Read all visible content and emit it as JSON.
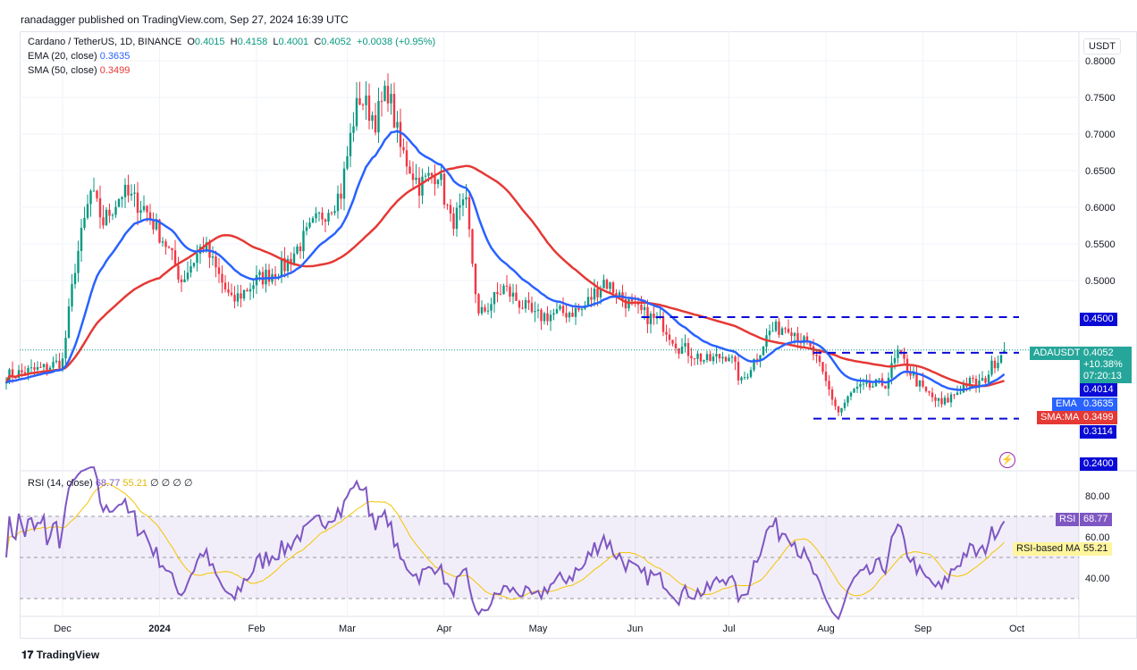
{
  "header": {
    "published": "ranadagger published on TradingView.com, Sep 27, 2024 16:39 UTC"
  },
  "legend": {
    "symbol": "Cardano / TetherUS, 1D, BINANCE",
    "o_label": "O",
    "o": "0.4015",
    "h_label": "H",
    "h": "0.4158",
    "l_label": "L",
    "l": "0.4001",
    "c_label": "C",
    "c": "0.4052",
    "change": "+0.0038 (+0.95%)",
    "ema_label": "EMA (20, close)",
    "ema": "0.3635",
    "sma_label": "SMA (50, close)",
    "sma": "0.3499",
    "rsi_label": "RSI (14, close)",
    "rsi": "68.77",
    "rsi_ma": "55.21",
    "rsi_extra": "∅ ∅ ∅ ∅"
  },
  "axis": {
    "currency": "USDT",
    "price_ticks": [
      "0.8000",
      "0.7500",
      "0.7000",
      "0.6500",
      "0.6000",
      "0.5500",
      "0.5000"
    ],
    "rsi_ticks": [
      "80.00",
      "60.00",
      "40.00"
    ],
    "time_ticks": [
      "Dec",
      "2024",
      "Feb",
      "Mar",
      "Apr",
      "May",
      "Jun",
      "Jul",
      "Aug",
      "Sep",
      "Oct"
    ]
  },
  "badges": {
    "symbol": "ADAUSDT",
    "last": "0.4052",
    "pct": "+10.38%",
    "countdown": "07:20:13",
    "level_450": "0.4500",
    "level_4014": "0.4014",
    "ema_tag": "EMA",
    "ema": "0.3635",
    "sma_tag": "SMA:MA",
    "sma": "0.3499",
    "level_3114": "0.3114",
    "level_240": "0.2400",
    "rsi_tag": "RSI",
    "rsi": "68.77",
    "rsima_tag": "RSI-based MA",
    "rsima": "55.21"
  },
  "footer": {
    "brand": "TradingView"
  },
  "colors": {
    "up": "#089981",
    "down": "#f23645",
    "ema": "#2962ff",
    "sma": "#e53935",
    "rsi": "#7e57c2",
    "rsi_ma": "#f5c400",
    "level": "#0a0ad6"
  },
  "chart_data": {
    "type": "candlestick",
    "title": "Cardano / TetherUS, 1D, BINANCE",
    "ylim": [
      0.24,
      0.8
    ],
    "approx_close_path": [
      [
        "2023-11-13",
        0.37
      ],
      [
        "2023-11-25",
        0.38
      ],
      [
        "2023-12-01",
        0.39
      ],
      [
        "2023-12-05",
        0.52
      ],
      [
        "2023-12-10",
        0.62
      ],
      [
        "2023-12-14",
        0.58
      ],
      [
        "2023-12-20",
        0.62
      ],
      [
        "2023-12-27",
        0.6
      ],
      [
        "2024-01-03",
        0.55
      ],
      [
        "2024-01-08",
        0.5
      ],
      [
        "2024-01-15",
        0.55
      ],
      [
        "2024-01-24",
        0.47
      ],
      [
        "2024-02-01",
        0.5
      ],
      [
        "2024-02-10",
        0.52
      ],
      [
        "2024-02-20",
        0.58
      ],
      [
        "2024-02-28",
        0.62
      ],
      [
        "2024-03-03",
        0.72
      ],
      [
        "2024-03-05",
        0.75
      ],
      [
        "2024-03-10",
        0.72
      ],
      [
        "2024-03-14",
        0.76
      ],
      [
        "2024-03-18",
        0.68
      ],
      [
        "2024-03-24",
        0.63
      ],
      [
        "2024-03-30",
        0.65
      ],
      [
        "2024-04-03",
        0.58
      ],
      [
        "2024-04-08",
        0.6
      ],
      [
        "2024-04-12",
        0.45
      ],
      [
        "2024-04-20",
        0.49
      ],
      [
        "2024-04-30",
        0.45
      ],
      [
        "2024-05-15",
        0.46
      ],
      [
        "2024-05-22",
        0.5
      ],
      [
        "2024-06-01",
        0.46
      ],
      [
        "2024-06-10",
        0.44
      ],
      [
        "2024-06-15",
        0.41
      ],
      [
        "2024-06-24",
        0.39
      ],
      [
        "2024-07-01",
        0.4
      ],
      [
        "2024-07-05",
        0.36
      ],
      [
        "2024-07-14",
        0.43
      ],
      [
        "2024-07-20",
        0.44
      ],
      [
        "2024-07-28",
        0.4
      ],
      [
        "2024-08-05",
        0.32
      ],
      [
        "2024-08-10",
        0.35
      ],
      [
        "2024-08-20",
        0.36
      ],
      [
        "2024-08-24",
        0.4
      ],
      [
        "2024-09-01",
        0.35
      ],
      [
        "2024-09-07",
        0.33
      ],
      [
        "2024-09-15",
        0.36
      ],
      [
        "2024-09-20",
        0.36
      ],
      [
        "2024-09-24",
        0.39
      ],
      [
        "2024-09-27",
        0.4052
      ]
    ],
    "indicators": [
      {
        "name": "EMA (20, close)",
        "last": 0.3635
      },
      {
        "name": "SMA (50, close)",
        "last": 0.3499
      },
      {
        "name": "RSI (14, close)",
        "last": 68.77
      },
      {
        "name": "RSI-based MA",
        "last": 55.21
      }
    ],
    "horizontal_levels": [
      {
        "value": 0.45,
        "from": "2024-06-03"
      },
      {
        "value": 0.4014,
        "from": "2024-07-28"
      },
      {
        "value": 0.3114,
        "from": "2024-07-28"
      }
    ],
    "rsi_bands": [
      70,
      50,
      30
    ]
  }
}
